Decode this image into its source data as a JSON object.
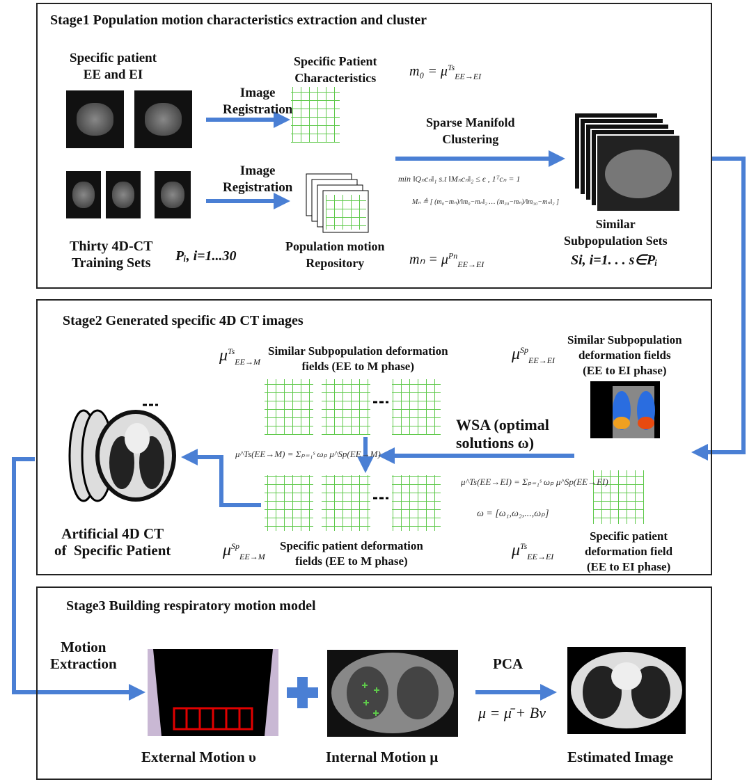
{
  "stage1": {
    "title": "Stage1 Population motion characteristics extraction and cluster",
    "patient_label": "Specific patient\nEE and EI",
    "reg1": "Image\nRegistration",
    "reg2": "Image\nRegistration",
    "spc_label": "Specific Patient\nCharacteristics",
    "m0": "m₀ = μ",
    "m0_sup": "Ts",
    "m0_sub": "EE→EI",
    "smc": "Sparse Manifold\nClustering",
    "opt1": "min ‖Qₙcₙ‖₁  s.t ‖Mₙcₙ‖₂ ≤ ϵ , 1ᵀcₙ = 1",
    "opt2": "Mₙ ≜ [ (m₀−mₙ)/‖m₀−mₙ‖₂ … (m₃₀−mₙ)/‖m₃₀−mₙ‖₂ ]",
    "training": "Thirty 4D-CT\nTraining Sets",
    "pi": "Pᵢ, i=1...30",
    "repo": "Population motion\nRepository",
    "mn": "mₙ = μ",
    "mn_sup": "Pn",
    "mn_sub": "EE→EI",
    "similar": "Similar\nSubpopulation Sets",
    "si": "Si, i=1. . . s∈Pᵢ"
  },
  "stage2": {
    "title": "Stage2 Generated specific 4D CT images",
    "mu_ts_m": "μ",
    "mu_ts_m_sup": "Ts",
    "mu_ts_m_sub": "EE→M",
    "sim_def": "Similar Subpopulation deformation\nfields (EE to M phase)",
    "mu_sp_ei": "μ",
    "mu_sp_ei_sup": "Sp",
    "mu_sp_ei_sub": "EE→EI",
    "sim_def_ei": "Similar Subpopulation\ndeformation fields\n(EE to EI phase)",
    "wsa": "WSA (optimal\nsolutions ω)",
    "eq_m": "μ^Ts(EE→M) = Σₚ₌₁ˢ ωₚ μ^Sp(EE→M)",
    "eq_ei": "μ^Ts(EE→EI) = Σₚ₌₁ˢ ωₚ μ^Sp(EE→EI)",
    "omega": "ω = [ω₁,ω₂,...,ωₚ]",
    "artificial": "Artificial 4D CT\nof  Specific Patient",
    "mu_sp_m": "μ",
    "mu_sp_m_sup": "Sp",
    "mu_sp_m_sub": "EE→M",
    "spec_def": "Specific patient deformation\nfields (EE to M phase)",
    "mu_ts_ei": "μ",
    "mu_ts_ei_sup": "Ts",
    "mu_ts_ei_sub": "EE→EI",
    "spec_def_ei": "Specific patient\ndeformation field\n(EE to EI phase)"
  },
  "stage3": {
    "title": "Stage3 Building respiratory motion model",
    "motion_extraction": "Motion\nExtraction",
    "pca": "PCA",
    "model": "μ = μ̄ + Bν",
    "external": "External  Motion υ",
    "internal": "Internal  Motion μ",
    "estimated": "Estimated Image"
  },
  "colors": {
    "arrow": "#4a7fd4",
    "grid": "#5ec94a",
    "marker": "#e00000"
  }
}
